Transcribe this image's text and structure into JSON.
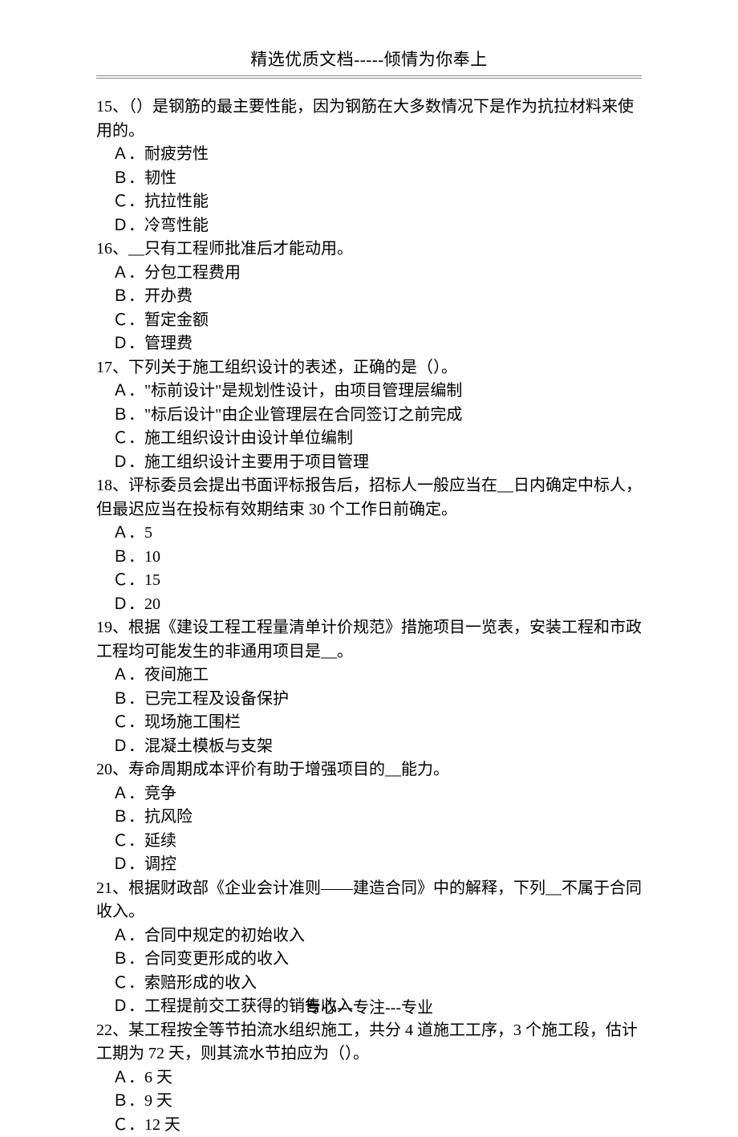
{
  "header": "精选优质文档-----倾情为你奉上",
  "footer": "专心---专注---专业",
  "questions": [
    {
      "stem": "15、（）是钢筋的最主要性能，因为钢筋在大多数情况下是作为抗拉材料来使用的。",
      "opts": [
        "Ａ．耐疲劳性",
        "Ｂ．韧性",
        "Ｃ．抗拉性能",
        "Ｄ．冷弯性能"
      ]
    },
    {
      "stem": "16、__只有工程师批准后才能动用。",
      "opts": [
        "Ａ．分包工程费用",
        "Ｂ．开办费",
        "Ｃ．暂定金额",
        "Ｄ．管理费"
      ]
    },
    {
      "stem": "17、下列关于施工组织设计的表述，正确的是（）。",
      "opts": [
        "Ａ．\"标前设计\"是规划性设计，由项目管理层编制",
        "Ｂ．\"标后设计\"由企业管理层在合同签订之前完成",
        "Ｃ．施工组织设计由设计单位编制",
        "Ｄ．施工组织设计主要用于项目管理"
      ]
    },
    {
      "stem": "18、评标委员会提出书面评标报告后，招标人一般应当在__日内确定中标人，但最迟应当在投标有效期结束 30 个工作日前确定。",
      "opts": [
        "Ａ．5",
        "Ｂ．10",
        "Ｃ．15",
        "Ｄ．20"
      ]
    },
    {
      "stem": "19、根据《建设工程工程量清单计价规范》措施项目一览表，安装工程和市政工程均可能发生的非通用项目是__。",
      "opts": [
        "Ａ．夜间施工",
        "Ｂ．已完工程及设备保护",
        "Ｃ．现场施工围栏",
        "Ｄ．混凝土模板与支架"
      ]
    },
    {
      "stem": "20、寿命周期成本评价有助于增强项目的__能力。",
      "opts": [
        "Ａ．竞争",
        "Ｂ．抗风险",
        "Ｃ．延续",
        "Ｄ．调控"
      ]
    },
    {
      "stem": "21、根据财政部《企业会计准则——建造合同》中的解释，下列__不属于合同收入。",
      "opts": [
        "Ａ．合同中规定的初始收入",
        "Ｂ．合同变更形成的收入",
        "Ｃ．索赔形成的收入",
        "Ｄ．工程提前交工获得的销售收入"
      ]
    },
    {
      "stem": "22、某工程按全等节拍流水组织施工，共分 4 道施工工序，3 个施工段，估计工期为 72 天，则其流水节拍应为（）。",
      "opts": [
        "Ａ．6 天",
        "Ｂ．9 天",
        "Ｃ．12 天"
      ]
    }
  ]
}
